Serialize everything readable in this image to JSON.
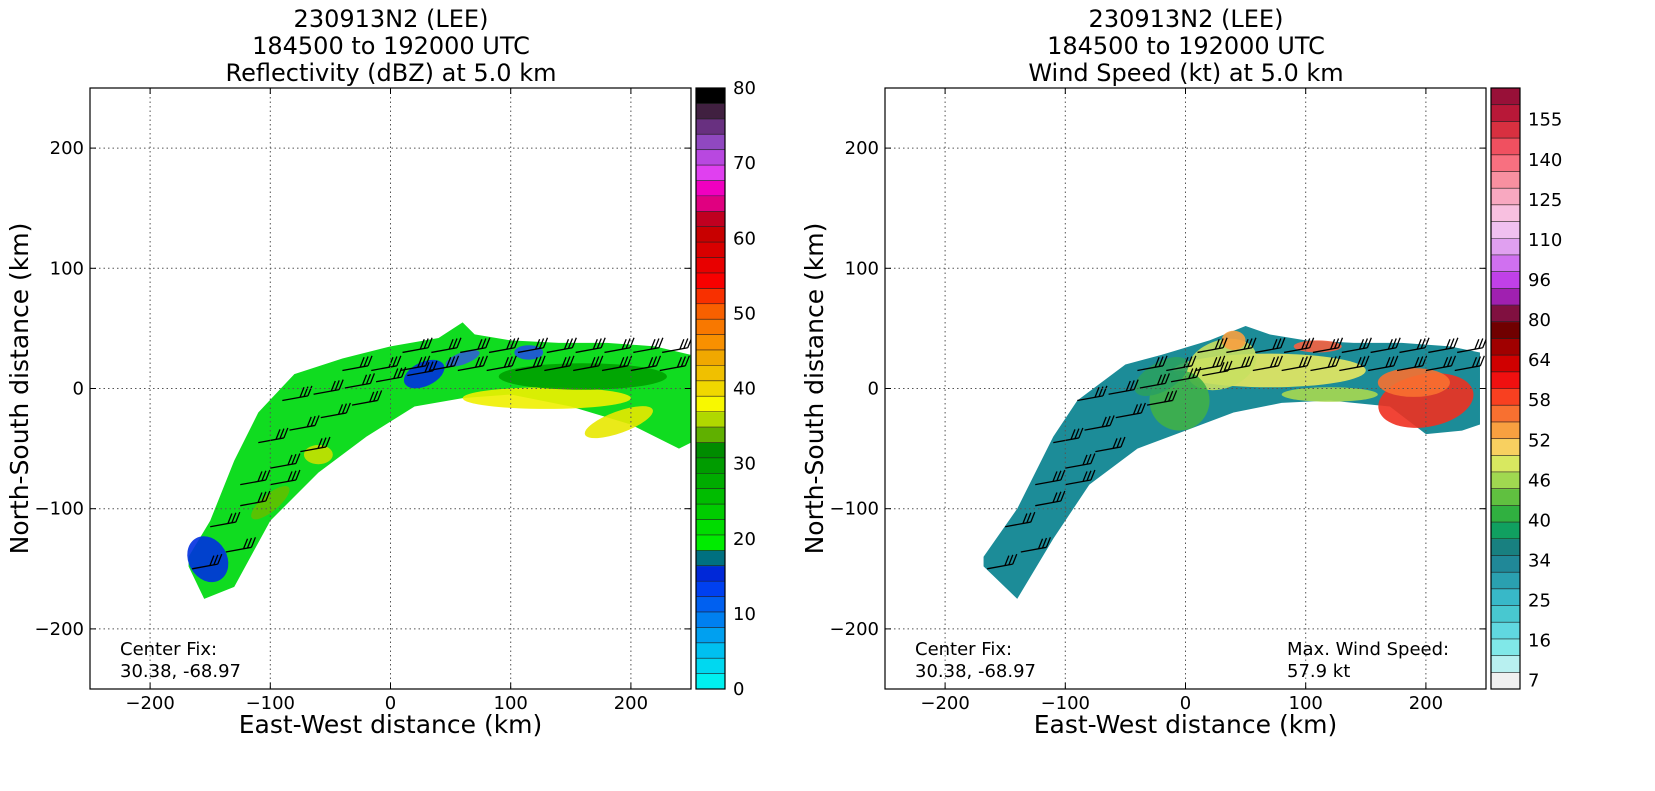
{
  "chart_data": [
    {
      "type": "heatmap",
      "title": [
        "230913N2 (LEE)",
        "184500 to 192000 UTC",
        "Reflectivity (dBZ) at 5.0 km"
      ],
      "xlabel": "East-West distance (km)",
      "ylabel": "North-South distance (km)",
      "xlim": [
        -250,
        250
      ],
      "ylim": [
        -250,
        250
      ],
      "xticks": [
        -200,
        -100,
        0,
        100,
        200
      ],
      "yticks": [
        -200,
        -100,
        0,
        100,
        200
      ],
      "xtick_labels": [
        "−200",
        "−100",
        "0",
        "100",
        "200"
      ],
      "ytick_labels": [
        "−200",
        "−100",
        "0",
        "100",
        "200"
      ],
      "grid": true,
      "annotation_left": [
        "Center Fix:",
        "30.38, -68.97"
      ],
      "annotation_right": [],
      "colorbar": {
        "min": 0,
        "max": 80,
        "ticks": [
          0,
          10,
          20,
          30,
          40,
          50,
          60,
          70,
          80
        ],
        "tick_labels": [
          "0",
          "10",
          "20",
          "30",
          "40",
          "50",
          "60",
          "70",
          "80"
        ],
        "colors": [
          "#00f0f0",
          "#00d8f0",
          "#00c0f0",
          "#00a0f0",
          "#0080f0",
          "#0060f0",
          "#0040f0",
          "#0028d8",
          "#007080",
          "#00ec00",
          "#00dc00",
          "#00cc00",
          "#00bc00",
          "#00ac00",
          "#009c00",
          "#008c00",
          "#60b000",
          "#b0d800",
          "#f8f800",
          "#f0d800",
          "#f0c000",
          "#f0a800",
          "#f89000",
          "#f87800",
          "#f86000",
          "#f83000",
          "#f80000",
          "#e80000",
          "#d80000",
          "#c80000",
          "#c00020",
          "#e00080",
          "#f000c0",
          "#e040f0",
          "#b848e0",
          "#9048c0",
          "#683080",
          "#402040",
          "#000000"
        ]
      },
      "band": {
        "lower": [
          [
            -168,
            -148
          ],
          [
            -155,
            -175
          ],
          [
            -130,
            -165
          ],
          [
            -100,
            -110
          ],
          [
            -60,
            -70
          ],
          [
            -20,
            -40
          ],
          [
            20,
            -15
          ],
          [
            60,
            -8
          ],
          [
            100,
            -5
          ],
          [
            150,
            -15
          ],
          [
            200,
            -30
          ],
          [
            240,
            -50
          ],
          [
            250,
            -45
          ]
        ],
        "upper": [
          [
            250,
            28
          ],
          [
            220,
            35
          ],
          [
            180,
            38
          ],
          [
            140,
            38
          ],
          [
            100,
            40
          ],
          [
            70,
            45
          ],
          [
            60,
            55
          ],
          [
            40,
            42
          ],
          [
            0,
            35
          ],
          [
            -40,
            25
          ],
          [
            -80,
            12
          ],
          [
            -110,
            -20
          ],
          [
            -130,
            -60
          ],
          [
            -150,
            -110
          ],
          [
            -168,
            -140
          ]
        ]
      },
      "patches": [
        {
          "x": -152,
          "y": -142,
          "rx": 16,
          "ry": 20,
          "rot": -30,
          "color": "#0030e0"
        },
        {
          "x": 28,
          "y": 12,
          "rx": 18,
          "ry": 10,
          "rot": -25,
          "color": "#0030e0"
        },
        {
          "x": 115,
          "y": 30,
          "rx": 12,
          "ry": 6,
          "rot": 0,
          "color": "#2050e0"
        },
        {
          "x": 60,
          "y": 25,
          "rx": 15,
          "ry": 5,
          "rot": -20,
          "color": "#3060d0"
        },
        {
          "x": 130,
          "y": -8,
          "rx": 70,
          "ry": 9,
          "rot": 0,
          "color": "#f0f000"
        },
        {
          "x": 190,
          "y": -28,
          "rx": 30,
          "ry": 9,
          "rot": -20,
          "color": "#e8e800"
        },
        {
          "x": 160,
          "y": 10,
          "rx": 70,
          "ry": 11,
          "rot": 0,
          "color": "#00a000"
        },
        {
          "x": -60,
          "y": -55,
          "rx": 12,
          "ry": 8,
          "rot": 0,
          "color": "#c8e000"
        },
        {
          "x": -100,
          "y": -95,
          "rx": 20,
          "ry": 7,
          "rot": -40,
          "color": "#60c000"
        }
      ]
    },
    {
      "type": "heatmap",
      "title": [
        "230913N2 (LEE)",
        "184500 to 192000 UTC",
        "Wind Speed (kt) at 5.0 km"
      ],
      "xlabel": "East-West distance (km)",
      "ylabel": "North-South distance (km)",
      "xlim": [
        -250,
        250
      ],
      "ylim": [
        -250,
        250
      ],
      "xticks": [
        -200,
        -100,
        0,
        100,
        200
      ],
      "yticks": [
        -200,
        -100,
        0,
        100,
        200
      ],
      "xtick_labels": [
        "−200",
        "−100",
        "0",
        "100",
        "200"
      ],
      "ytick_labels": [
        "−200",
        "−100",
        "0",
        "100",
        "200"
      ],
      "grid": true,
      "annotation_left": [
        "Center Fix:",
        "30.38, -68.97"
      ],
      "annotation_right": [
        "Max. Wind Speed:",
        "57.9 kt"
      ],
      "colorbar": {
        "min": 0,
        "max": 160,
        "ticks": [
          7,
          16,
          25,
          34,
          40,
          46,
          52,
          58,
          64,
          80,
          96,
          110,
          125,
          140,
          155
        ],
        "tick_labels": [
          "7",
          "16",
          "25",
          "34",
          "40",
          "46",
          "52",
          "58",
          "64",
          "80",
          "96",
          "110",
          "125",
          "140",
          "155"
        ],
        "colors": [
          "#f0f0f0",
          "#b8f0f0",
          "#80e8e8",
          "#60d8e0",
          "#48c8d0",
          "#38b8c8",
          "#2aa0b0",
          "#208898",
          "#188080",
          "#10a060",
          "#30b040",
          "#60c040",
          "#a0d850",
          "#d8e860",
          "#f8d060",
          "#f8a040",
          "#f87030",
          "#f84020",
          "#f01010",
          "#d00000",
          "#a00000",
          "#700000",
          "#801040",
          "#a020b0",
          "#c040e8",
          "#d070f0",
          "#e0a0f0",
          "#f0c0f0",
          "#f8c0e0",
          "#f8a8c0",
          "#f890a0",
          "#f87080",
          "#f05060",
          "#d83040",
          "#b81838",
          "#981038"
        ]
      },
      "band": {
        "lower": [
          [
            -168,
            -148
          ],
          [
            -140,
            -175
          ],
          [
            -110,
            -125
          ],
          [
            -80,
            -80
          ],
          [
            -40,
            -50
          ],
          [
            0,
            -35
          ],
          [
            40,
            -20
          ],
          [
            80,
            -12
          ],
          [
            120,
            -10
          ],
          [
            170,
            -15
          ],
          [
            200,
            -38
          ],
          [
            230,
            -35
          ],
          [
            245,
            -30
          ]
        ],
        "upper": [
          [
            245,
            30
          ],
          [
            220,
            35
          ],
          [
            180,
            38
          ],
          [
            140,
            38
          ],
          [
            100,
            40
          ],
          [
            70,
            45
          ],
          [
            50,
            52
          ],
          [
            20,
            40
          ],
          [
            -20,
            28
          ],
          [
            -50,
            20
          ],
          [
            -90,
            -10
          ],
          [
            -110,
            -40
          ],
          [
            -140,
            -100
          ],
          [
            -168,
            -140
          ]
        ]
      },
      "patches": [
        {
          "x": 200,
          "y": -10,
          "rx": 40,
          "ry": 22,
          "rot": -10,
          "color": "#f03020"
        },
        {
          "x": 190,
          "y": 5,
          "rx": 30,
          "ry": 12,
          "rot": 0,
          "color": "#f87030"
        },
        {
          "x": 70,
          "y": 15,
          "rx": 80,
          "ry": 14,
          "rot": 0,
          "color": "#e8e860"
        },
        {
          "x": 30,
          "y": 20,
          "rx": 30,
          "ry": 20,
          "rot": -20,
          "color": "#c8e060"
        },
        {
          "x": -5,
          "y": -10,
          "rx": 25,
          "ry": 25,
          "rot": -40,
          "color": "#40b048"
        },
        {
          "x": -20,
          "y": 10,
          "rx": 25,
          "ry": 12,
          "rot": -30,
          "color": "#2aa060"
        },
        {
          "x": 110,
          "y": 35,
          "rx": 20,
          "ry": 5,
          "rot": 0,
          "color": "#f86040"
        },
        {
          "x": 120,
          "y": -5,
          "rx": 40,
          "ry": 6,
          "rot": 0,
          "color": "#a8d850"
        },
        {
          "x": 40,
          "y": 40,
          "rx": 10,
          "ry": 8,
          "rot": 0,
          "color": "#f8a040"
        }
      ]
    }
  ]
}
